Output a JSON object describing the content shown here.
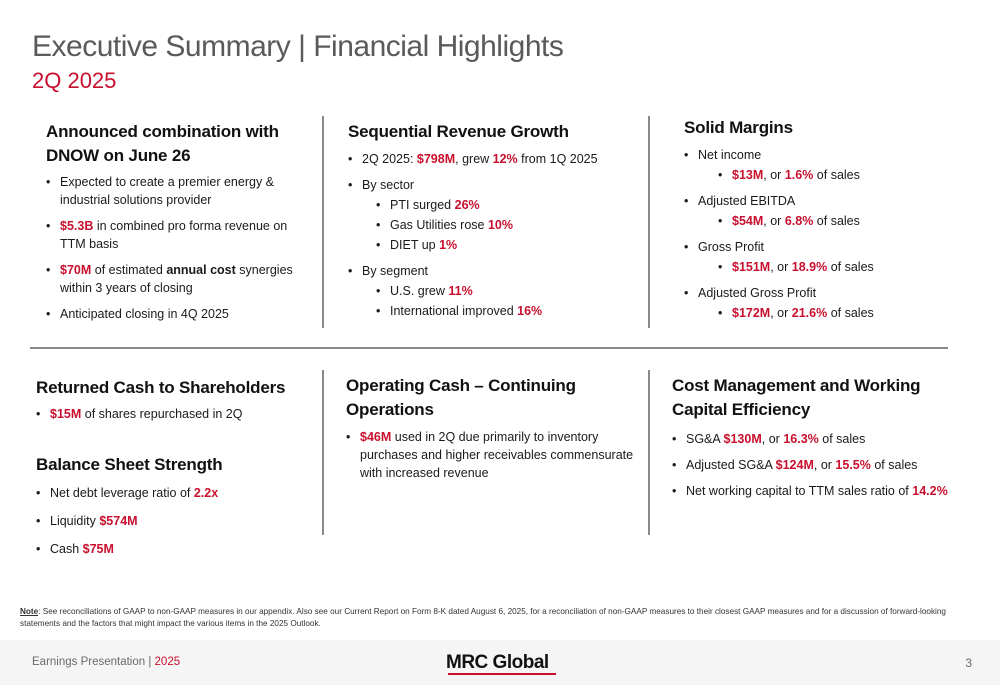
{
  "title": "Executive Summary | Financial Highlights",
  "subtitle": "2Q 2025",
  "s1": {
    "title": "Announced combination with DNOW on June 26",
    "b1": "Expected to create a premier energy & industrial solutions provider",
    "b2_val": "$5.3B",
    "b2_txt": " in combined pro forma revenue on TTM basis",
    "b3_val": "$70M",
    "b3_pre": " of estimated ",
    "b3_bold": "annual cost",
    "b3_post": " synergies within 3 years of closing",
    "b4": "Anticipated closing in 4Q 2025"
  },
  "s2": {
    "title": "Sequential Revenue Growth",
    "b1_pre": "2Q 2025: ",
    "b1_val": "$798M",
    "b1_mid": ", grew ",
    "b1_pct": "12%",
    "b1_post": " from 1Q 2025",
    "b2": "By sector",
    "b2_s1": "PTI surged ",
    "b2_s1v": "26%",
    "b2_s2": "Gas Utilities rose ",
    "b2_s2v": "10%",
    "b2_s3": "DIET up ",
    "b2_s3v": "1%",
    "b3": "By segment",
    "b3_s1": "U.S. grew ",
    "b3_s1v": "11%",
    "b3_s2": "International improved ",
    "b3_s2v": "16%"
  },
  "s3": {
    "title": "Solid Margins",
    "i1": "Net income",
    "i1_v1": "$13M",
    "i1_v2": "1.6%",
    "i2": "Adjusted EBITDA",
    "i2_v1": "$54M",
    "i2_v2": "6.8%",
    "i3": "Gross Profit",
    "i3_v1": "$151M",
    "i3_v2": "18.9%",
    "i4": "Adjusted Gross Profit",
    "i4_v1": "$172M",
    "i4_v2": "21.6%",
    "or": ", or ",
    "of_sales": " of sales"
  },
  "s4": {
    "title": "Returned Cash to Shareholders",
    "b1_val": "$15M",
    "b1_txt": " of shares repurchased in 2Q"
  },
  "s5": {
    "title": "Balance Sheet Strength",
    "b1_txt": "Net debt leverage ratio of ",
    "b1_val": "2.2x",
    "b2_txt": "Liquidity ",
    "b2_val": "$574M",
    "b3_txt": "Cash ",
    "b3_val": "$75M"
  },
  "s6": {
    "title": "Operating Cash – Continuing Operations",
    "b1_val": "$46M",
    "b1_txt": " used in 2Q due primarily to inventory purchases and higher receivables commensurate with increased revenue"
  },
  "s7": {
    "title": "Cost Management and Working Capital Efficiency",
    "b1_txt": "SG&A ",
    "b1_val": "$130M",
    "b1_mid": ", or ",
    "b1_pct": "16.3%",
    "b1_post": " of sales",
    "b2_txt": "Adjusted SG&A ",
    "b2_val": "$124M",
    "b2_mid": ", or ",
    "b2_pct": "15.5%",
    "b2_post": " of sales",
    "b3_txt": "Net working capital to TTM sales ratio of ",
    "b3_val": "14.2%"
  },
  "note": {
    "label": "Note",
    "text": ": See reconciliations of GAAP to non-GAAP measures in our appendix. Also see our Current Report on Form 8-K dated August 6, 2025, for a reconciliation of non-GAAP measures to their closest GAAP measures and for a discussion of forward-looking statements and the factors that might impact the various items in the 2025 Outlook."
  },
  "footer": {
    "left": "Earnings Presentation | ",
    "year": "2025",
    "logo": "MRC Global",
    "page": "3"
  },
  "colors": {
    "accent": "#c8102e",
    "title_gray": "#5a5a5a",
    "divider": "#8a8a8a"
  }
}
